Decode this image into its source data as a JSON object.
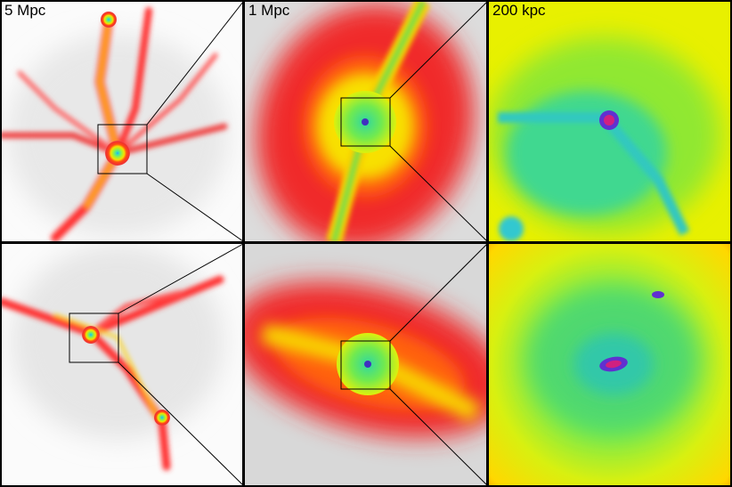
{
  "labels": [
    "5 Mpc",
    "1 Mpc",
    "200 kpc"
  ]
}
